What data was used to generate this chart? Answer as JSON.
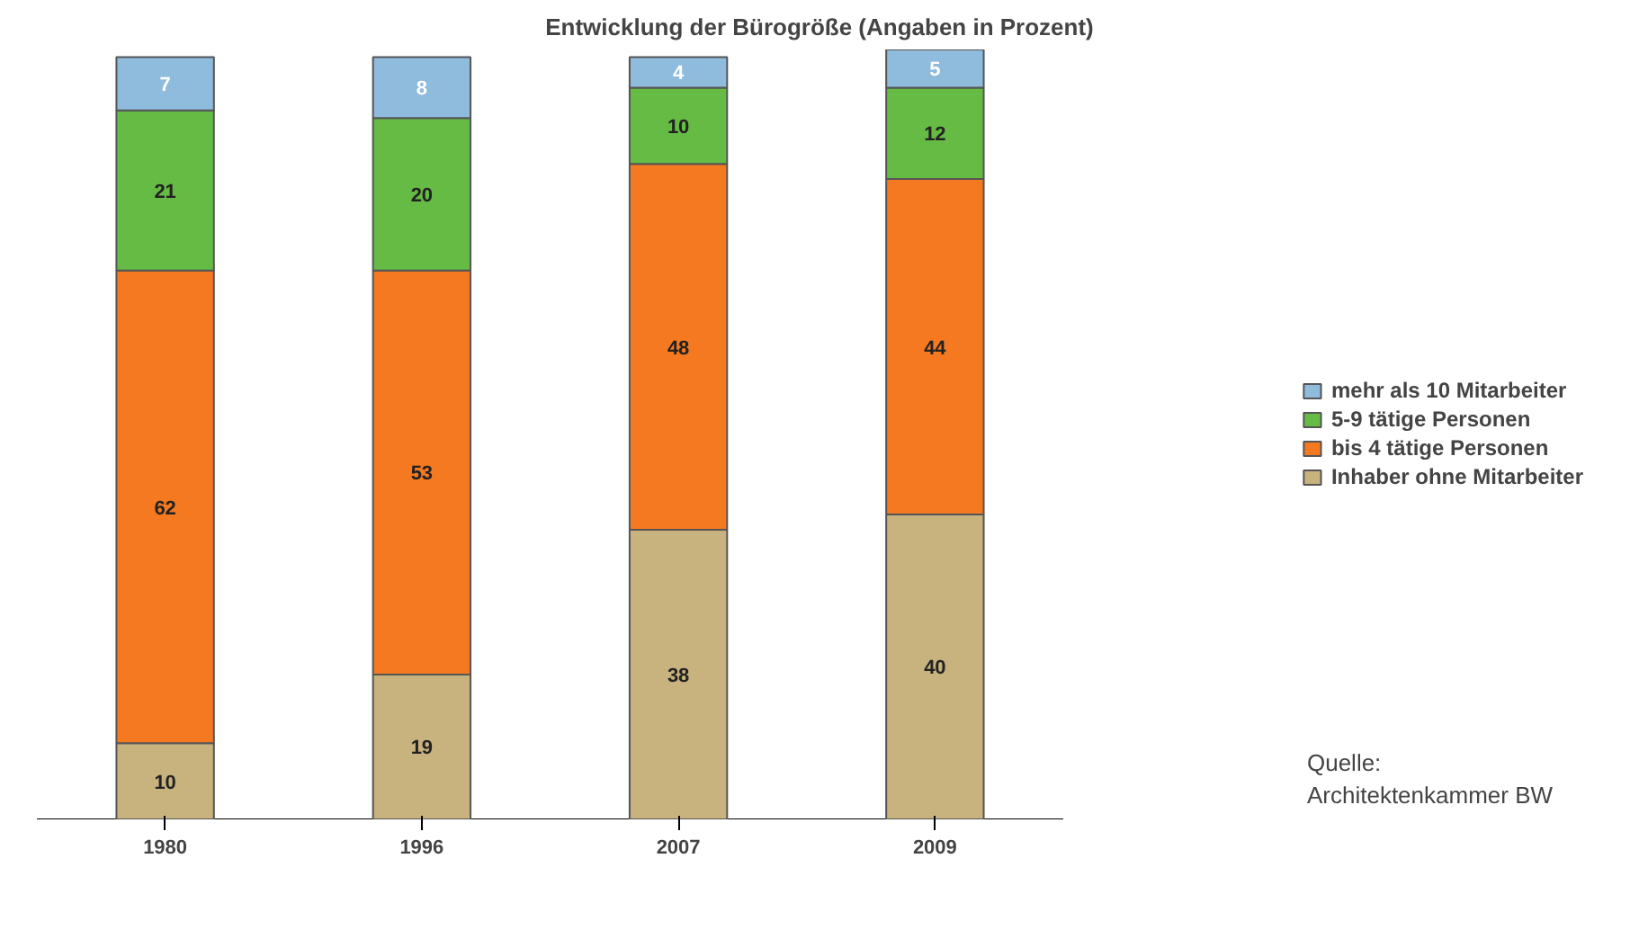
{
  "chart_data": {
    "type": "bar",
    "stacked": true,
    "title": "Entwicklung der Bürogröße (Angaben in Prozent)",
    "categories": [
      "1980",
      "1996",
      "2007",
      "2009"
    ],
    "series": [
      {
        "name": "Inhaber ohne Mitarbeiter",
        "color": "#c8b27e",
        "values": [
          10,
          19,
          38,
          40
        ]
      },
      {
        "name": "bis 4 tätige Personen",
        "color": "#f47920",
        "values": [
          62,
          53,
          48,
          44
        ]
      },
      {
        "name": "5-9 tätige Personen",
        "color": "#66bb44",
        "values": [
          21,
          20,
          10,
          12
        ]
      },
      {
        "name": "mehr als 10 Mitarbeiter",
        "color": "#8fbbdc",
        "values": [
          7,
          8,
          4,
          5
        ]
      }
    ],
    "data_labels": true,
    "legend": "right",
    "grid": false,
    "annotations": [
      "Quelle:\nArchitektenkammer BW"
    ]
  }
}
